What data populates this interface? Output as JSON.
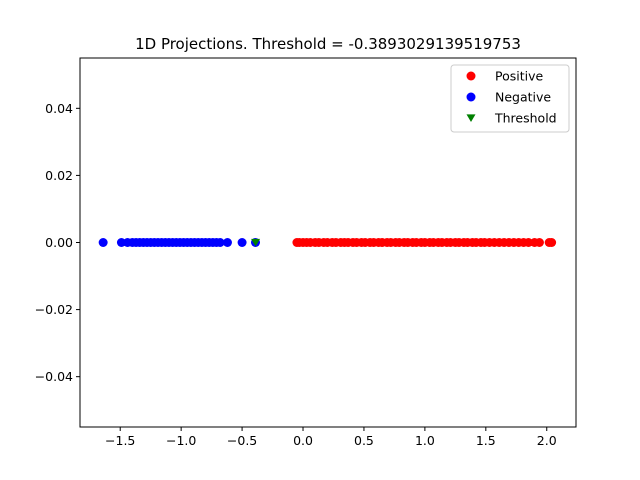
{
  "chart_data": {
    "type": "scatter",
    "title": "1D Projections. Threshold = -0.3893029139519753",
    "xlabel": "",
    "ylabel": "",
    "xlim": [
      -1.83,
      2.24
    ],
    "ylim": [
      -0.055,
      0.055
    ],
    "xticks": [
      -1.5,
      -1.0,
      -0.5,
      0.0,
      0.5,
      1.0,
      1.5,
      2.0
    ],
    "xtick_labels": [
      "−1.5",
      "−1.0",
      "−0.5",
      "0.0",
      "0.5",
      "1.0",
      "1.5",
      "2.0"
    ],
    "yticks": [
      -0.04,
      -0.02,
      0.0,
      0.02,
      0.04
    ],
    "ytick_labels": [
      "−0.04",
      "−0.02",
      "0.00",
      "0.02",
      "0.04"
    ],
    "grid": false,
    "legend_position": "top-right",
    "series": [
      {
        "name": "Positive",
        "marker": "circle",
        "color": "#ff0000",
        "x": [
          -0.05,
          -0.03,
          0.0,
          0.03,
          0.06,
          0.1,
          0.13,
          0.17,
          0.2,
          0.24,
          0.27,
          0.31,
          0.34,
          0.37,
          0.41,
          0.44,
          0.48,
          0.51,
          0.55,
          0.58,
          0.62,
          0.65,
          0.69,
          0.72,
          0.76,
          0.79,
          0.83,
          0.86,
          0.9,
          0.93,
          0.97,
          1.0,
          1.04,
          1.07,
          1.11,
          1.14,
          1.18,
          1.21,
          1.25,
          1.28,
          1.32,
          1.35,
          1.39,
          1.42,
          1.46,
          1.49,
          1.53,
          1.57,
          1.61,
          1.65,
          1.69,
          1.73,
          1.77,
          1.81,
          1.85,
          1.9,
          1.94,
          2.02,
          2.04
        ],
        "y": [
          0,
          0,
          0,
          0,
          0,
          0,
          0,
          0,
          0,
          0,
          0,
          0,
          0,
          0,
          0,
          0,
          0,
          0,
          0,
          0,
          0,
          0,
          0,
          0,
          0,
          0,
          0,
          0,
          0,
          0,
          0,
          0,
          0,
          0,
          0,
          0,
          0,
          0,
          0,
          0,
          0,
          0,
          0,
          0,
          0,
          0,
          0,
          0,
          0,
          0,
          0,
          0,
          0,
          0,
          0,
          0,
          0,
          0,
          0
        ]
      },
      {
        "name": "Negative",
        "marker": "circle",
        "color": "#0000ff",
        "x": [
          -1.64,
          -1.49,
          -1.44,
          -1.4,
          -1.37,
          -1.34,
          -1.31,
          -1.28,
          -1.25,
          -1.22,
          -1.19,
          -1.16,
          -1.13,
          -1.1,
          -1.07,
          -1.04,
          -1.01,
          -0.98,
          -0.95,
          -0.92,
          -0.89,
          -0.86,
          -0.83,
          -0.8,
          -0.77,
          -0.74,
          -0.71,
          -0.68,
          -0.62,
          -0.5,
          -0.39
        ],
        "y": [
          0,
          0,
          0,
          0,
          0,
          0,
          0,
          0,
          0,
          0,
          0,
          0,
          0,
          0,
          0,
          0,
          0,
          0,
          0,
          0,
          0,
          0,
          0,
          0,
          0,
          0,
          0,
          0,
          0,
          0,
          0
        ]
      },
      {
        "name": "Threshold",
        "marker": "triangle-down",
        "color": "#008000",
        "x": [
          -0.3893029139519753
        ],
        "y": [
          0
        ]
      }
    ]
  }
}
